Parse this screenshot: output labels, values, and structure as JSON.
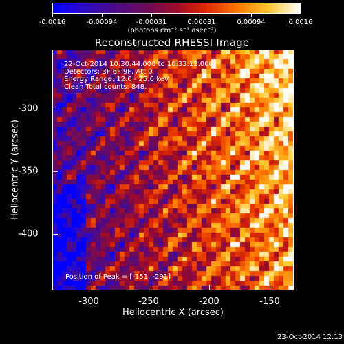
{
  "colorbar": {
    "ticks": [
      "-0.0016",
      "-0.00094",
      "-0.00031",
      "0.00031",
      "0.00094",
      "0.0016"
    ],
    "units": "(photons cm⁻² s⁻¹ asec⁻²)",
    "colormap": [
      "#0000ff",
      "#3a0aa8",
      "#5a0a6a",
      "#8a0a3a",
      "#c81e0a",
      "#ff5a00",
      "#ffa000",
      "#ffd84a",
      "#fffacc",
      "#ffffff"
    ]
  },
  "title": "Reconstructed RHESSI Image",
  "overlay": {
    "line1": "22-Oct-2014 10:30:44.000 to 10:33:12.000",
    "line2": "Detectors: 3F 6F 9F, Att 0",
    "line3": "Energy Range: 12.0 - 25.0 keV",
    "line4": "Clean    Total counts: 848.",
    "peak": "Position of Peak = [-151, -291]"
  },
  "axes": {
    "xlabel": "Heliocentric X (arcsec)",
    "ylabel": "Heliocentric Y (arcsec)",
    "xticks": [
      "-300",
      "-250",
      "-200",
      "-150"
    ],
    "yticks": [
      "-300",
      "-350",
      "-400"
    ]
  },
  "timestamp": "23-Oct-2014 12:13"
}
